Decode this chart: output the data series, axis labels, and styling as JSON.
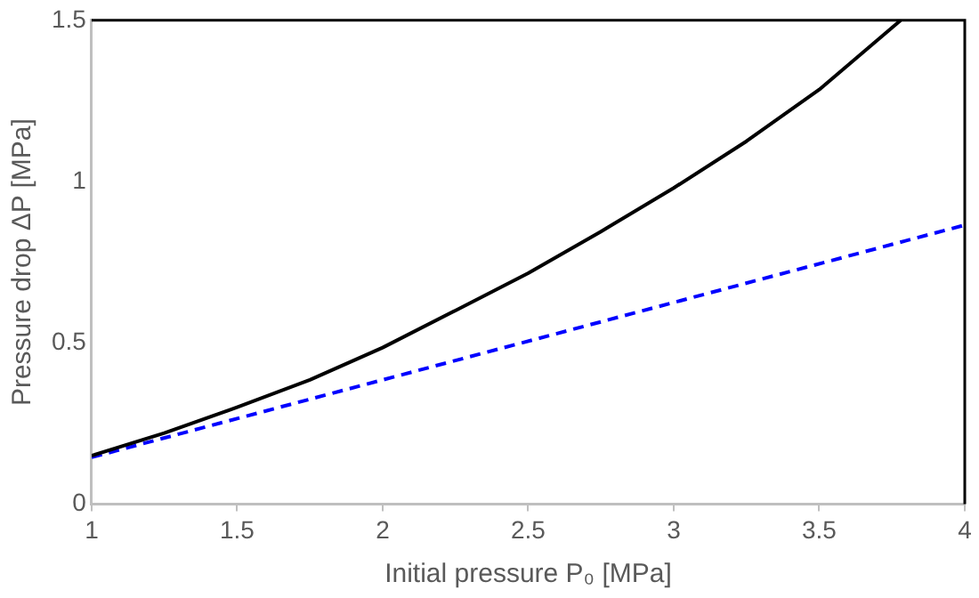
{
  "chart_data": {
    "type": "line",
    "xlabel": "Initial pressure P₀ [MPa]",
    "ylabel": "Pressure drop ΔP [MPa]",
    "xlim": [
      1,
      4
    ],
    "ylim": [
      0,
      1.5
    ],
    "xticks": [
      1,
      1.5,
      2,
      2.5,
      3,
      3.5,
      4
    ],
    "yticks": [
      0,
      0.5,
      1,
      1.5
    ],
    "grid": false,
    "legend": false,
    "marker": "none",
    "series": [
      {
        "color": "#000000",
        "line_style": "solid",
        "x": [
          1,
          1.25,
          1.5,
          1.75,
          2,
          2.25,
          2.5,
          2.75,
          3,
          3.25,
          3.5,
          3.78
        ],
        "values": [
          0.15,
          0.22,
          0.3,
          0.385,
          0.485,
          0.6,
          0.716,
          0.845,
          0.98,
          1.125,
          1.285,
          1.5
        ]
      },
      {
        "color": "#0000ff",
        "line_style": "dashed",
        "x": [
          1,
          4
        ],
        "values": [
          0.145,
          0.865
        ]
      }
    ]
  }
}
